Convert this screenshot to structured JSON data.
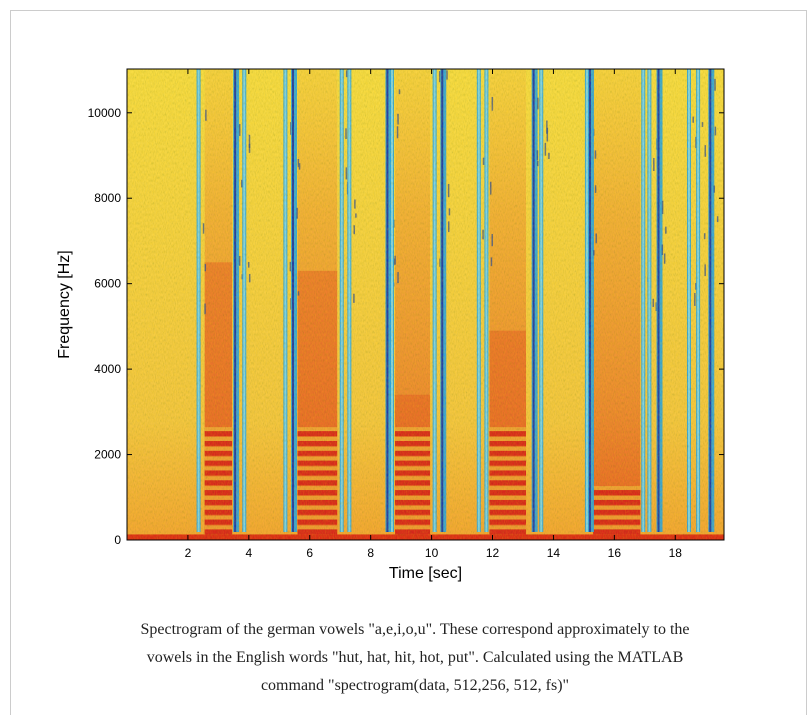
{
  "chart_data": {
    "type": "heatmap",
    "title": "",
    "xlabel": "Time [sec]",
    "ylabel": "Frequency [Hz]",
    "xlim": [
      0,
      19.6
    ],
    "ylim": [
      0,
      11025
    ],
    "x_ticks": [
      2,
      4,
      6,
      8,
      10,
      12,
      14,
      16,
      18
    ],
    "y_ticks": [
      0,
      2000,
      4000,
      6000,
      8000,
      10000
    ],
    "colormap": "jet",
    "vowel_segments": [
      {
        "vowel": "a",
        "start": 2.55,
        "end": 3.45,
        "formant_top": 6500
      },
      {
        "vowel": "e",
        "start": 5.6,
        "end": 6.9,
        "formant_top": 6300
      },
      {
        "vowel": "i",
        "start": 8.8,
        "end": 9.95,
        "formant_top": 3400
      },
      {
        "vowel": "o",
        "start": 11.9,
        "end": 13.1,
        "formant_top": 4900
      },
      {
        "vowel": "u",
        "start": 15.3,
        "end": 16.85,
        "formant_top": 1200
      }
    ],
    "silence_gaps": [
      2.35,
      3.55,
      3.85,
      5.2,
      5.45,
      7.05,
      7.3,
      8.55,
      8.7,
      10.1,
      10.35,
      11.55,
      11.8,
      13.35,
      13.6,
      15.1,
      15.2,
      16.95,
      17.15,
      17.45,
      18.45,
      18.75,
      19.15
    ],
    "grid": false,
    "legend": "none"
  },
  "colors": {
    "background_field": "#fde64a",
    "voiced_band": "#e8472a",
    "low_freq_band": "#e0201a",
    "gap": "#16a2ff",
    "gap_deep": "#1233b8"
  },
  "caption": {
    "line1": "Spectrogram of the german vowels \"a,e,i,o,u\". These correspond approximately to the",
    "line2": "vowels in the English words \"hut, hat, hit, hot, put\". Calculated using the MATLAB",
    "line3": "command \"spectrogram(data, 512,256, 512, fs)\""
  }
}
